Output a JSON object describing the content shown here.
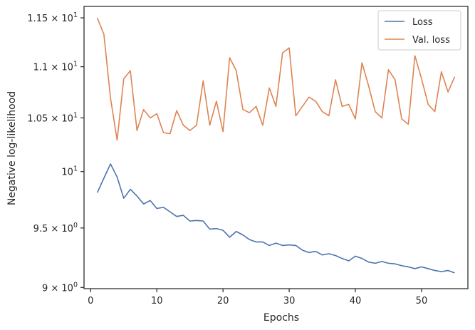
{
  "chart_data": {
    "type": "line",
    "xlabel": "Epochs",
    "ylabel": "Negative log-likelihood",
    "yscale": "log",
    "xlim": [
      -1,
      57
    ],
    "ylim": [
      8.99,
      11.62
    ],
    "grid": false,
    "legend_position": "top-right",
    "x_ticks": [
      {
        "value": 0,
        "label": "0"
      },
      {
        "value": 10,
        "label": "10"
      },
      {
        "value": 20,
        "label": "20"
      },
      {
        "value": 30,
        "label": "30"
      },
      {
        "value": 40,
        "label": "40"
      },
      {
        "value": 50,
        "label": "50"
      }
    ],
    "y_ticks": [
      {
        "value": 9.0,
        "base": "9",
        "exp": "0",
        "exp_only": false
      },
      {
        "value": 9.5,
        "base": "9.5",
        "exp": "0",
        "exp_only": false
      },
      {
        "value": 10.0,
        "base": "10",
        "exp": "1",
        "exp_only": true
      },
      {
        "value": 10.5,
        "base": "1.05",
        "exp": "1",
        "exp_only": false
      },
      {
        "value": 11.0,
        "base": "1.1",
        "exp": "1",
        "exp_only": false
      },
      {
        "value": 11.5,
        "base": "1.15",
        "exp": "1",
        "exp_only": false
      }
    ],
    "x": [
      1,
      2,
      3,
      4,
      5,
      6,
      7,
      8,
      9,
      10,
      11,
      12,
      13,
      14,
      15,
      16,
      17,
      18,
      19,
      20,
      21,
      22,
      23,
      24,
      25,
      26,
      27,
      28,
      29,
      30,
      31,
      32,
      33,
      34,
      35,
      36,
      37,
      38,
      39,
      40,
      41,
      42,
      43,
      44,
      45,
      46,
      47,
      48,
      49,
      50,
      51,
      52,
      53,
      54,
      55
    ],
    "series": [
      {
        "name": "Loss",
        "color": "#4c72b0",
        "values": [
          9.81,
          9.94,
          10.07,
          9.95,
          9.76,
          9.84,
          9.78,
          9.71,
          9.74,
          9.67,
          9.68,
          9.64,
          9.6,
          9.61,
          9.56,
          9.565,
          9.56,
          9.49,
          9.495,
          9.48,
          9.42,
          9.47,
          9.44,
          9.4,
          9.38,
          9.38,
          9.35,
          9.37,
          9.35,
          9.355,
          9.35,
          9.31,
          9.29,
          9.3,
          9.27,
          9.28,
          9.265,
          9.24,
          9.22,
          9.26,
          9.24,
          9.21,
          9.2,
          9.215,
          9.2,
          9.195,
          9.18,
          9.17,
          9.155,
          9.17,
          9.155,
          9.14,
          9.13,
          9.14,
          9.12
        ]
      },
      {
        "name": "Val. loss",
        "color": "#dd8452",
        "values": [
          11.5,
          11.33,
          10.69,
          10.29,
          10.88,
          10.96,
          10.38,
          10.58,
          10.5,
          10.54,
          10.36,
          10.35,
          10.57,
          10.43,
          10.38,
          10.43,
          10.86,
          10.43,
          10.66,
          10.37,
          11.09,
          10.96,
          10.58,
          10.55,
          10.61,
          10.43,
          10.79,
          10.61,
          11.14,
          11.19,
          10.52,
          10.61,
          10.7,
          10.66,
          10.56,
          10.52,
          10.87,
          10.61,
          10.63,
          10.49,
          11.04,
          10.81,
          10.56,
          10.5,
          10.97,
          10.87,
          10.49,
          10.44,
          11.11,
          10.88,
          10.63,
          10.56,
          10.95,
          10.75,
          10.9
        ]
      }
    ]
  }
}
